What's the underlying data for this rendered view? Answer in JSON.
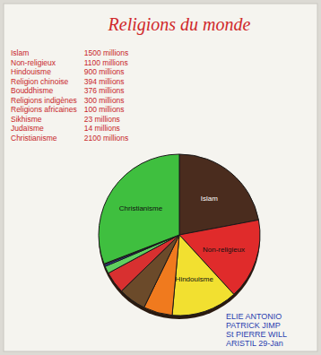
{
  "chart_data": {
    "type": "pie",
    "title": "Religions du monde",
    "categories": [
      "Islam",
      "Non-religieux",
      "Hindouisme",
      "Religion chinoise",
      "Bouddhisme",
      "Religions indigènes",
      "Religions africaines",
      "Sikhisme",
      "Judaïsme",
      "Christianisme"
    ],
    "values": [
      1500,
      1100,
      900,
      394,
      376,
      300,
      100,
      23,
      14,
      2100
    ],
    "value_labels": [
      "1500 millions",
      "1100 millions",
      "900 millions",
      "394 millions",
      "376 millions",
      "300 millions",
      "100 millions",
      "23 millions",
      "14 millions",
      "2100 millions"
    ],
    "colors": [
      "#4a2c1e",
      "#e02b2b",
      "#f2e030",
      "#f07a1e",
      "#6b4a2a",
      "#d83030",
      "#5fd05f",
      "#3050c0",
      "#9a4fb0",
      "#3fbf3f"
    ],
    "annotations": [
      "ELIE ANTONIO",
      "PATRICK JIMP",
      "St PIERRE WILL",
      "ARISTIL 29-Jan"
    ]
  }
}
